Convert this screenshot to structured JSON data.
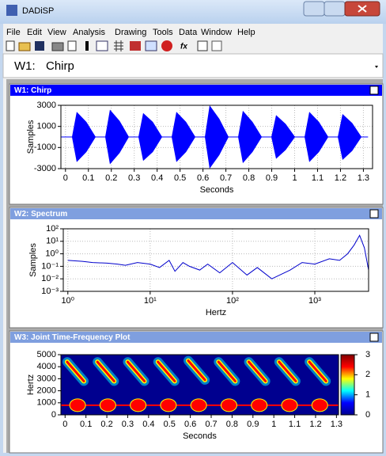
{
  "window": {
    "title": "DADiSP",
    "menu": [
      "File",
      "Edit",
      "View",
      "Analysis",
      "Drawing",
      "Tools",
      "Data",
      "Window",
      "Help"
    ]
  },
  "selector": {
    "label": "W1:",
    "value": "Chirp"
  },
  "windows": [
    {
      "title": "W1: Chirp",
      "chart_data": {
        "type": "area",
        "xlabel": "Seconds",
        "ylabel": "Samples",
        "xlim": [
          -0.02,
          1.34
        ],
        "ylim": [
          -3000,
          3000
        ],
        "grid": true,
        "xticks": [
          0,
          0.1,
          0.2,
          0.3,
          0.4,
          0.5,
          0.6,
          0.7,
          0.8,
          0.9,
          1,
          1.1,
          1.2,
          1.3
        ],
        "yticks": [
          -3000,
          -1000,
          1000,
          3000
        ],
        "x": [
          -0.02,
          0.03,
          0.05,
          0.09,
          0.13,
          0.175,
          0.195,
          0.235,
          0.275,
          0.32,
          0.34,
          0.38,
          0.42,
          0.465,
          0.485,
          0.525,
          0.565,
          0.61,
          0.63,
          0.67,
          0.71,
          0.755,
          0.775,
          0.815,
          0.855,
          0.9,
          0.92,
          0.96,
          1.0,
          1.045,
          1.065,
          1.105,
          1.145,
          1.19,
          1.21,
          1.25,
          1.29,
          1.32
        ],
        "series": [
          {
            "color": "#0000ff",
            "values": [
              0,
              0,
              2300,
              1400,
              0,
              0,
              2500,
              1500,
              0,
              0,
              2200,
              1400,
              0,
              0,
              2300,
              1400,
              0,
              0,
              2900,
              1700,
              0,
              0,
              2400,
              1400,
              0,
              0,
              2000,
              1200,
              0,
              0,
              2300,
              1400,
              0,
              0,
              2100,
              1300,
              0,
              0
            ]
          },
          {
            "color": "#0000ff",
            "values": [
              0,
              0,
              -2300,
              -1400,
              0,
              0,
              -2500,
              -1500,
              0,
              0,
              -2200,
              -1400,
              0,
              0,
              -2300,
              -1400,
              0,
              0,
              -2900,
              -1700,
              0,
              0,
              -2400,
              -1400,
              0,
              0,
              -2000,
              -1200,
              0,
              0,
              -2300,
              -1400,
              0,
              0,
              -2100,
              -1300,
              0,
              0
            ]
          }
        ]
      }
    },
    {
      "title": "W2: Spectrum",
      "chart_data": {
        "type": "line",
        "xlabel": "Hertz",
        "ylabel": "Samples",
        "xlog": true,
        "ylog": true,
        "grid": true,
        "xlim": [
          0.88,
          4500
        ],
        "ylim": [
          0.001,
          100
        ],
        "xticks": [
          {
            "value": 1,
            "label": "10⁰"
          },
          {
            "value": 10,
            "label": "10¹"
          },
          {
            "value": 100,
            "label": "10²"
          },
          {
            "value": 1000,
            "label": "10³"
          }
        ],
        "yticks": [
          {
            "value": 0.001,
            "label": "10⁻³"
          },
          {
            "value": 0.01,
            "label": "10⁻²"
          },
          {
            "value": 0.1,
            "label": "10⁻¹"
          },
          {
            "value": 1,
            "label": "10⁰"
          },
          {
            "value": 10,
            "label": "10¹"
          },
          {
            "value": 100,
            "label": "10²"
          }
        ],
        "x": [
          1,
          1.5,
          2,
          3,
          4,
          5,
          7,
          10,
          13,
          17,
          20,
          25,
          30,
          40,
          50,
          70,
          100,
          150,
          200,
          300,
          500,
          700,
          1000,
          1500,
          2000,
          2500,
          3000,
          3500,
          4000,
          4500
        ],
        "series": [
          {
            "color": "#0000cc",
            "values": [
              0.3,
              0.25,
              0.2,
              0.18,
              0.15,
              0.12,
              0.2,
              0.15,
              0.08,
              0.3,
              0.04,
              0.2,
              0.1,
              0.05,
              0.15,
              0.03,
              0.2,
              0.02,
              0.08,
              0.01,
              0.05,
              0.2,
              0.15,
              0.4,
              0.3,
              1,
              5,
              30,
              3,
              0.05
            ]
          }
        ]
      }
    },
    {
      "title": "W3: Joint Time-Frequency Plot",
      "chart_data": {
        "type": "spectrogram",
        "xlabel": "Seconds",
        "ylabel": "Hertz",
        "xlim": [
          -0.02,
          1.31
        ],
        "ylim": [
          0,
          5000
        ],
        "xticks": [
          0,
          0.1,
          0.2,
          0.3,
          0.4,
          0.5,
          0.6,
          0.7,
          0.8,
          0.9,
          1,
          1.1,
          1.2,
          1.3
        ],
        "yticks": [
          0,
          1000,
          2000,
          3000,
          4000,
          5000
        ],
        "ridges": [
          {
            "x": [
              0.01,
              0.09
            ],
            "y": [
              4400,
              2800
            ]
          },
          {
            "x": [
              0.155,
              0.235
            ],
            "y": [
              4400,
              2800
            ]
          },
          {
            "x": [
              0.3,
              0.38
            ],
            "y": [
              4400,
              2800
            ]
          },
          {
            "x": [
              0.445,
              0.525
            ],
            "y": [
              4400,
              2800
            ]
          },
          {
            "x": [
              0.59,
              0.67
            ],
            "y": [
              4500,
              2900
            ]
          },
          {
            "x": [
              0.735,
              0.815
            ],
            "y": [
              4400,
              2800
            ]
          },
          {
            "x": [
              0.88,
              0.96
            ],
            "y": [
              4400,
              2800
            ]
          },
          {
            "x": [
              1.025,
              1.105
            ],
            "y": [
              4400,
              2800
            ]
          },
          {
            "x": [
              1.17,
              1.25
            ],
            "y": [
              4400,
              2800
            ]
          }
        ],
        "bursts": [
          0.06,
          0.205,
          0.35,
          0.495,
          0.64,
          0.785,
          0.93,
          1.075,
          1.22
        ],
        "burst_freq": 800,
        "clim": [
          0,
          3
        ],
        "cticks": [
          0,
          1,
          2,
          3
        ],
        "colormap": [
          "#00008f",
          "#0000ff",
          "#00ffff",
          "#ffff00",
          "#ff0000",
          "#800000"
        ]
      }
    }
  ]
}
